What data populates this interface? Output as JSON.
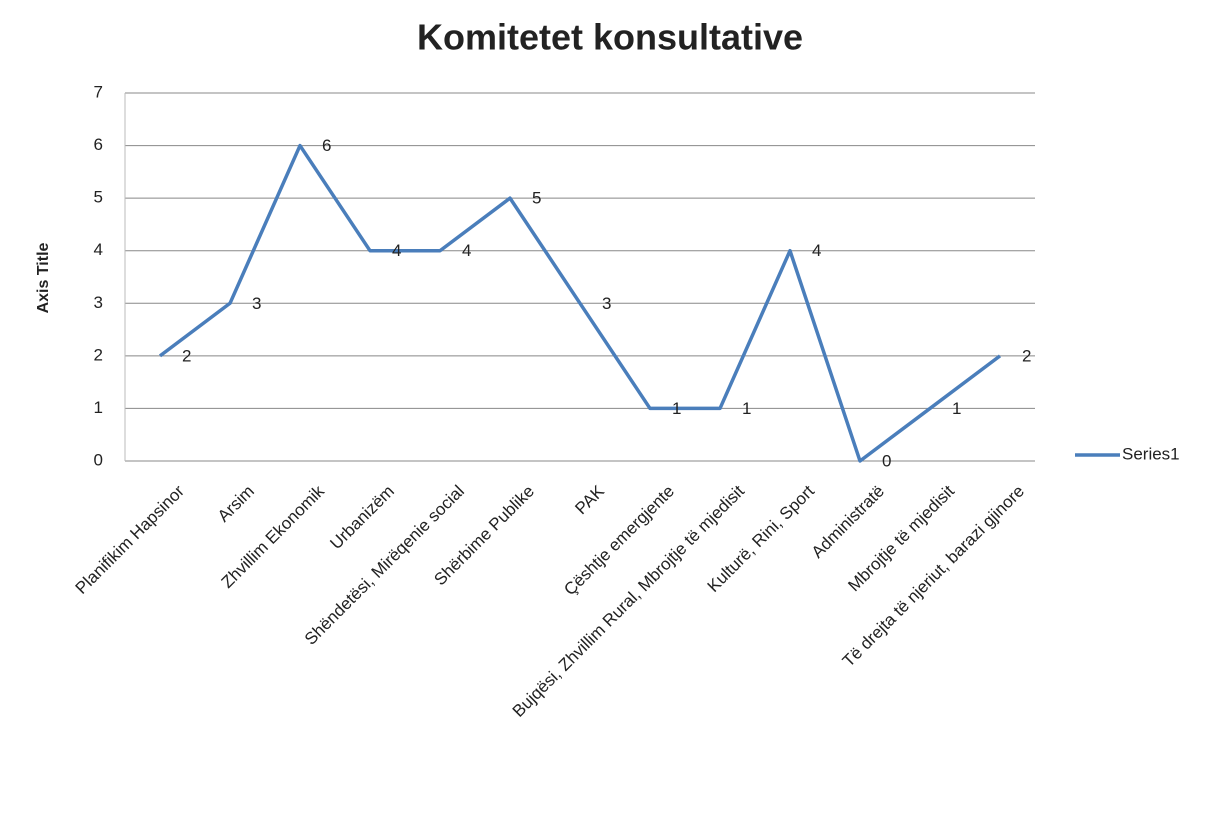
{
  "chart_data": {
    "type": "line",
    "title": "Komitetet konsultative",
    "y_label": "Axis Title",
    "categories": [
      "Planifikim Hapsinor",
      "Arsim",
      "Zhvillim Ekonomik",
      "Urbanizëm",
      "Shëndetësi, Mirëqenie social",
      "Shërbime Publike",
      "PAK",
      "Çështje emergjente",
      "Bujqësi, Zhvillim Rural, Mbrojtje të mjedisit",
      "Kulturë, Rini, Sport",
      "Administratë",
      "Mbrojtje të mjedisit",
      "Të drejta të njeriut, barazi gjinore"
    ],
    "series": [
      {
        "name": "Series1",
        "color": "#4a7ebb",
        "values": [
          2,
          3,
          6,
          4,
          4,
          5,
          3,
          1,
          1,
          4,
          0,
          1,
          2
        ]
      }
    ],
    "ylim": [
      0,
      7
    ],
    "yticks": [
      0,
      1,
      2,
      3,
      4,
      5,
      6,
      7
    ],
    "grid": true,
    "legend": "right",
    "data_labels": true
  }
}
